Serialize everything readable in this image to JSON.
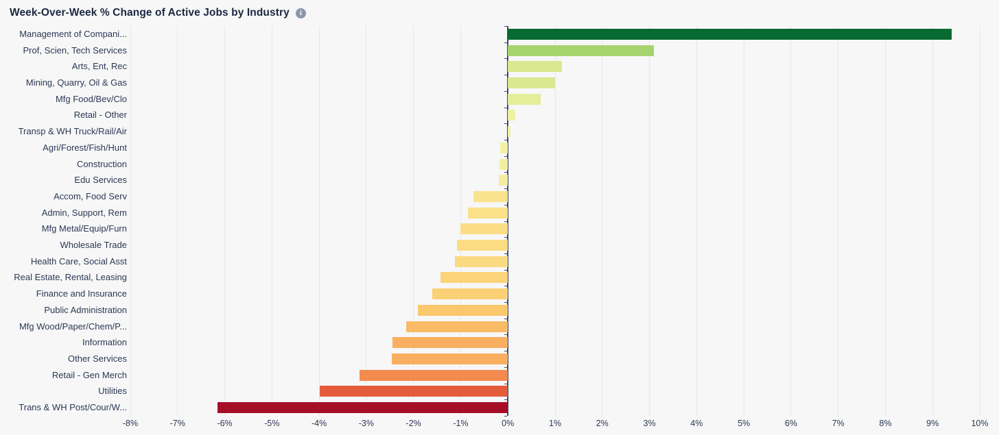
{
  "page": {
    "background": "#f7f7f8"
  },
  "header": {
    "title": "Week-Over-Week % Change of Active Jobs by Industry",
    "info_icon_glyph": "i"
  },
  "chart_data": {
    "type": "bar",
    "orientation": "horizontal",
    "title": "Week-Over-Week % Change of Active Jobs by Industry",
    "xlabel": "",
    "ylabel": "",
    "xlim": [
      -8,
      10
    ],
    "grid": true,
    "legend": "none",
    "value_unit": "%",
    "categories": [
      "Management of Compani...",
      "Prof, Scien, Tech Services",
      "Arts, Ent, Rec",
      "Mining, Quarry, Oil & Gas",
      "Mfg Food/Bev/Clo",
      "Retail - Other",
      "Transp & WH Truck/Rail/Air",
      "Agri/Forest/Fish/Hunt",
      "Construction",
      "Edu Services",
      "Accom, Food Serv",
      "Admin, Support, Rem",
      "Mfg Metal/Equip/Furn",
      "Wholesale Trade",
      "Health Care, Social Asst",
      "Real Estate, Rental, Leasing",
      "Finance and Insurance",
      "Public Administration",
      "Mfg Wood/Paper/Chem/P...",
      "Information",
      "Other Services",
      "Retail - Gen Merch",
      "Utilities",
      "Trans & WH Post/Cour/W..."
    ],
    "values": [
      9.4,
      3.1,
      1.15,
      1.0,
      0.7,
      0.16,
      0.05,
      -0.17,
      -0.18,
      -0.19,
      -0.73,
      -0.84,
      -1.0,
      -1.08,
      -1.13,
      -1.43,
      -1.6,
      -1.91,
      -2.16,
      -2.45,
      -2.46,
      -3.14,
      -3.98,
      -6.15
    ],
    "bar_colors": [
      "#076a30",
      "#a7d36e",
      "#d9e88f",
      "#dbe991",
      "#e3ed9a",
      "#edf2a3",
      "#eff3a6",
      "#f3f0a3",
      "#f3efa0",
      "#f3ee9f",
      "#fae38d",
      "#fae189",
      "#fbdd85",
      "#fbdc83",
      "#fbdb81",
      "#fcd479",
      "#fcd176",
      "#fbc76d",
      "#fabb66",
      "#f9ae60",
      "#f9ae60",
      "#f48b4e",
      "#e45c3b",
      "#a60e28"
    ],
    "x_tick_values": [
      -8,
      -7,
      -6,
      -5,
      -4,
      -3,
      -2,
      -1,
      0,
      1,
      2,
      3,
      4,
      5,
      6,
      7,
      8,
      9,
      10
    ],
    "x_tick_labels": [
      "-8%",
      "-7%",
      "-6%",
      "-5%",
      "-4%",
      "-3%",
      "-2%",
      "-1%",
      "0%",
      "1%",
      "2%",
      "3%",
      "4%",
      "5%",
      "6%",
      "7%",
      "8%",
      "9%",
      "10%"
    ],
    "colors": {
      "gridline": "#e7e7ea",
      "zero_line": "#3d4a63",
      "category_label": "#2b3852",
      "tick_label": "#2b3852"
    }
  }
}
